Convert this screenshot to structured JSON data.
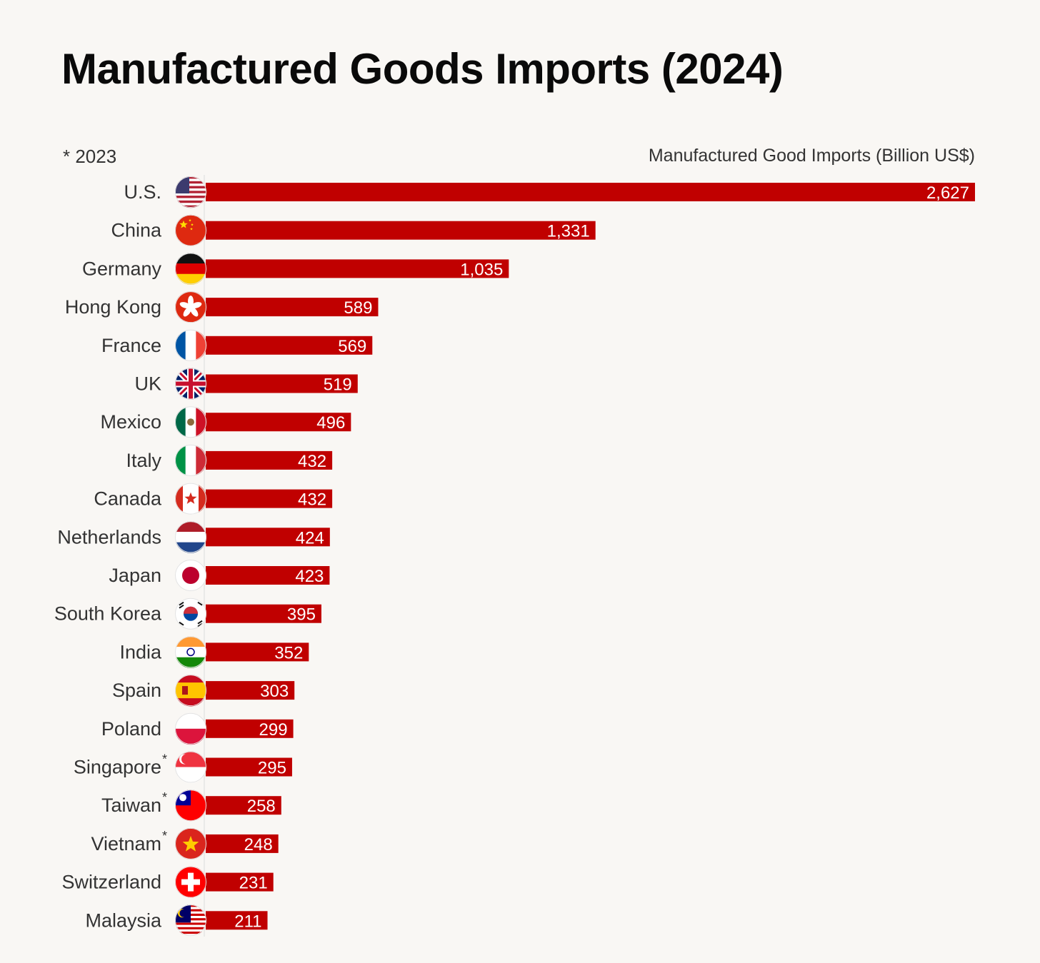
{
  "chart_data": {
    "type": "bar",
    "orientation": "horizontal",
    "title": "Manufactured Goods Imports (2024)",
    "note": "* 2023",
    "unit_label": "Manufactured Good Imports (Billion US$)",
    "bar_color": "#c00000",
    "categories": [
      "U.S.",
      "China",
      "Germany",
      "Hong Kong",
      "France",
      "UK",
      "Mexico",
      "Italy",
      "Canada",
      "Netherlands",
      "Japan",
      "South Korea",
      "India",
      "Spain",
      "Poland",
      "Singapore",
      "Taiwan",
      "Vietnam",
      "Switzerland",
      "Malaysia"
    ],
    "values": [
      2627,
      1331,
      1035,
      589,
      569,
      519,
      496,
      432,
      432,
      424,
      423,
      395,
      352,
      303,
      299,
      295,
      258,
      248,
      231,
      211
    ],
    "value_labels": [
      "2,627",
      "1,331",
      "1,035",
      "589",
      "569",
      "519",
      "496",
      "432",
      "432",
      "424",
      "423",
      "395",
      "352",
      "303",
      "299",
      "295",
      "258",
      "248",
      "231",
      "211"
    ],
    "asterisk_marks": [
      "",
      "",
      "",
      "",
      "",
      "",
      "",
      "",
      "",
      "",
      "",
      "",
      "",
      "",
      "",
      "*",
      "*",
      "*",
      "",
      ""
    ],
    "flag_icons": [
      "us-flag-icon",
      "china-flag-icon",
      "germany-flag-icon",
      "hong-kong-flag-icon",
      "france-flag-icon",
      "uk-flag-icon",
      "mexico-flag-icon",
      "italy-flag-icon",
      "canada-flag-icon",
      "netherlands-flag-icon",
      "japan-flag-icon",
      "south-korea-flag-icon",
      "india-flag-icon",
      "spain-flag-icon",
      "poland-flag-icon",
      "singapore-flag-icon",
      "taiwan-flag-icon",
      "vietnam-flag-icon",
      "switzerland-flag-icon",
      "malaysia-flag-icon"
    ],
    "xlim": [
      0,
      2627
    ],
    "grid": false,
    "legend": "none"
  }
}
